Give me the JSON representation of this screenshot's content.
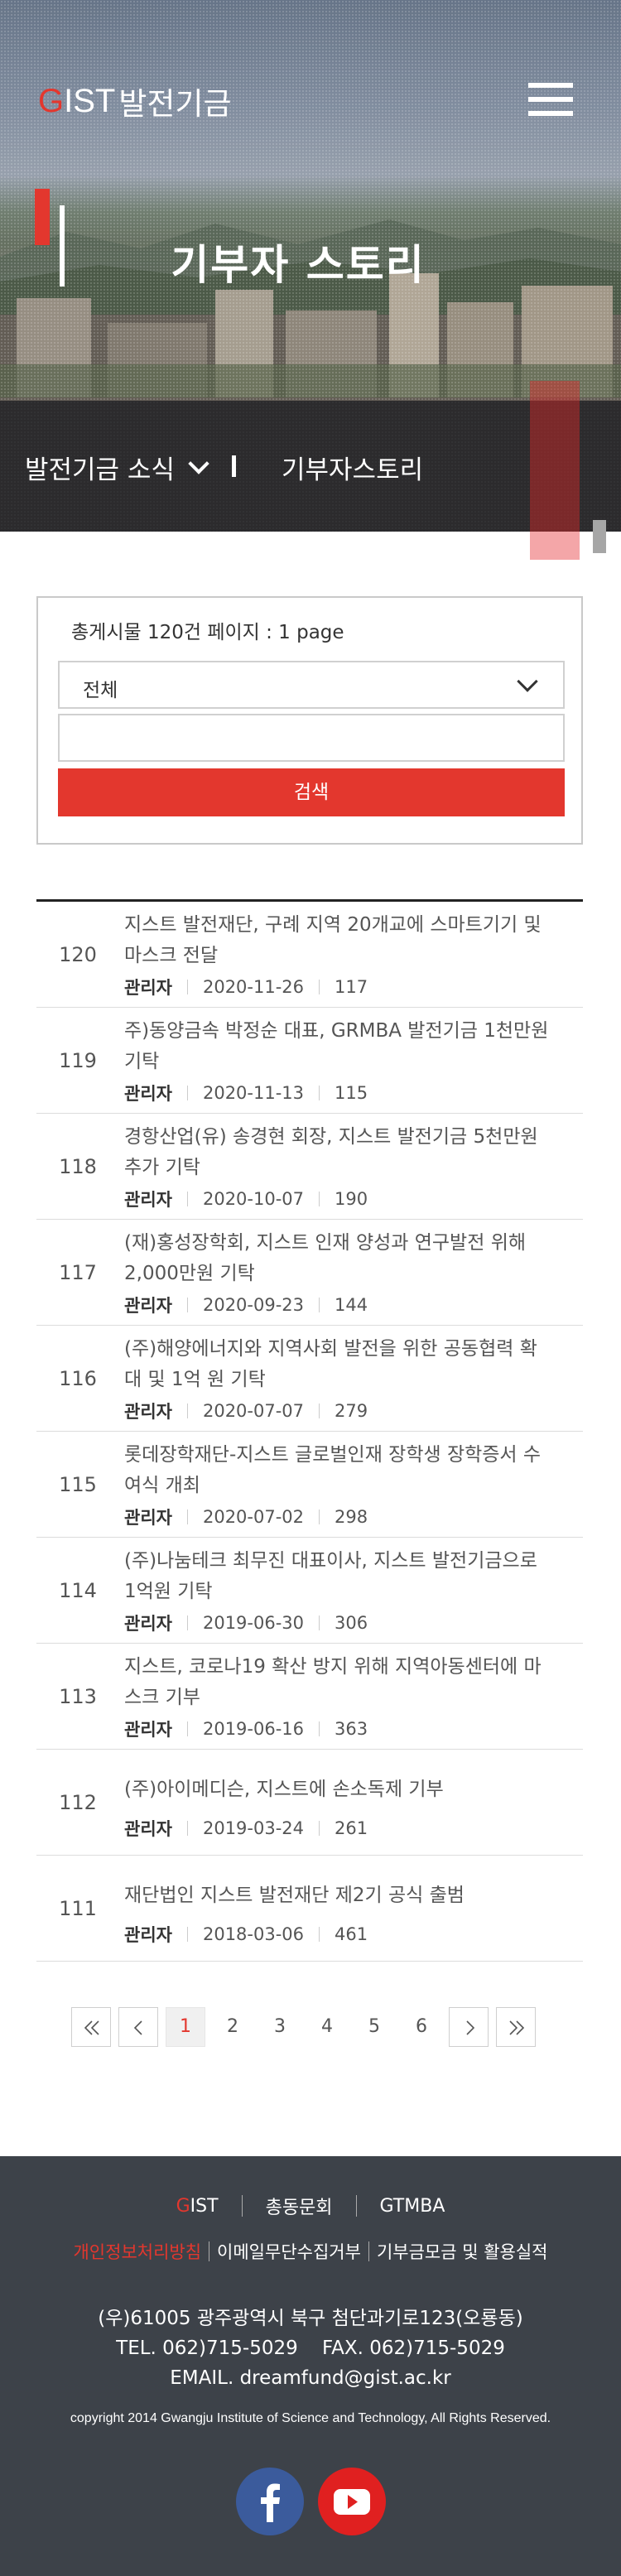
{
  "header": {
    "logo_g": "G",
    "logo_rest": "IST",
    "logo_kr": "발전기금",
    "menu_icon": "hamburger-menu-icon"
  },
  "hero": {
    "title": "기부자 스토리"
  },
  "nav": {
    "category": "발전기금 소식",
    "current": "기부자스토리"
  },
  "search": {
    "count_text": "총게시물 120건 페이지 : 1 page",
    "select_value": "전체",
    "input_value": "",
    "button_label": "검색"
  },
  "posts": [
    {
      "num": "120",
      "title": "지스트 발전재단, 구례 지역 20개교에 스마트기기 및 마스크 전달",
      "author": "관리자",
      "date": "2020-11-26",
      "views": "117"
    },
    {
      "num": "119",
      "title": "주)동양금속 박정순 대표, GRMBA 발전기금 1천만원 기탁",
      "author": "관리자",
      "date": "2020-11-13",
      "views": "115"
    },
    {
      "num": "118",
      "title": "경항산업(유) 송경현 회장, 지스트 발전기금 5천만원 추가 기탁",
      "author": "관리자",
      "date": "2020-10-07",
      "views": "190"
    },
    {
      "num": "117",
      "title": "(재)홍성장학회, 지스트 인재 양성과 연구발전 위해 2,000만원 기탁",
      "author": "관리자",
      "date": "2020-09-23",
      "views": "144"
    },
    {
      "num": "116",
      "title": "(주)해양에너지와 지역사회 발전을 위한 공동협력 확대 및 1억 원 기탁",
      "author": "관리자",
      "date": "2020-07-07",
      "views": "279"
    },
    {
      "num": "115",
      "title": "롯데장학재단-지스트 글로벌인재 장학생 장학증서 수여식 개최",
      "author": "관리자",
      "date": "2020-07-02",
      "views": "298"
    },
    {
      "num": "114",
      "title": "(주)나눔테크 최무진 대표이사, 지스트 발전기금으로 1억원 기탁",
      "author": "관리자",
      "date": "2019-06-30",
      "views": "306"
    },
    {
      "num": "113",
      "title": "지스트, 코로나19 확산 방지 위해 지역아동센터에 마스크 기부",
      "author": "관리자",
      "date": "2019-06-16",
      "views": "363"
    },
    {
      "num": "112",
      "title": "(주)아이메디슨, 지스트에 손소독제 기부",
      "author": "관리자",
      "date": "2019-03-24",
      "views": "261"
    },
    {
      "num": "111",
      "title": "재단법인 지스트 발전재단 제2기 공식 출범",
      "author": "관리자",
      "date": "2018-03-06",
      "views": "461"
    }
  ],
  "pagination": {
    "first_icon": "double-chevron-left-icon",
    "prev_icon": "chevron-left-icon",
    "pages": [
      "1",
      "2",
      "3",
      "4",
      "5",
      "6"
    ],
    "current_page": "1",
    "next_icon": "chevron-right-icon",
    "last_icon": "double-chevron-right-icon"
  },
  "footer": {
    "links_row1": [
      {
        "g": "G",
        "rest": "IST"
      },
      {
        "label": "총동문회"
      },
      {
        "label": "GTMBA"
      }
    ],
    "links_row2": [
      "개인정보처리방침",
      "이메일무단수집거부",
      "기부금모금 및 활용실적"
    ],
    "address": "(우)61005 광주광역시 북구 첨단과기로123(오룡동)",
    "tel_fax": "TEL. 062)715-5029    FAX. 062)715-5029",
    "email": "EMAIL. dreamfund@gist.ac.kr",
    "copyright": "copyright 2014 Gwangju Institute of Science and Technology, All Rights Reserved.",
    "sns": [
      "facebook-icon",
      "youtube-icon"
    ]
  },
  "colors": {
    "accent": "#e3372e",
    "footer_bg": "#3d4249",
    "facebook": "#3b5b9c",
    "youtube": "#e02020"
  }
}
